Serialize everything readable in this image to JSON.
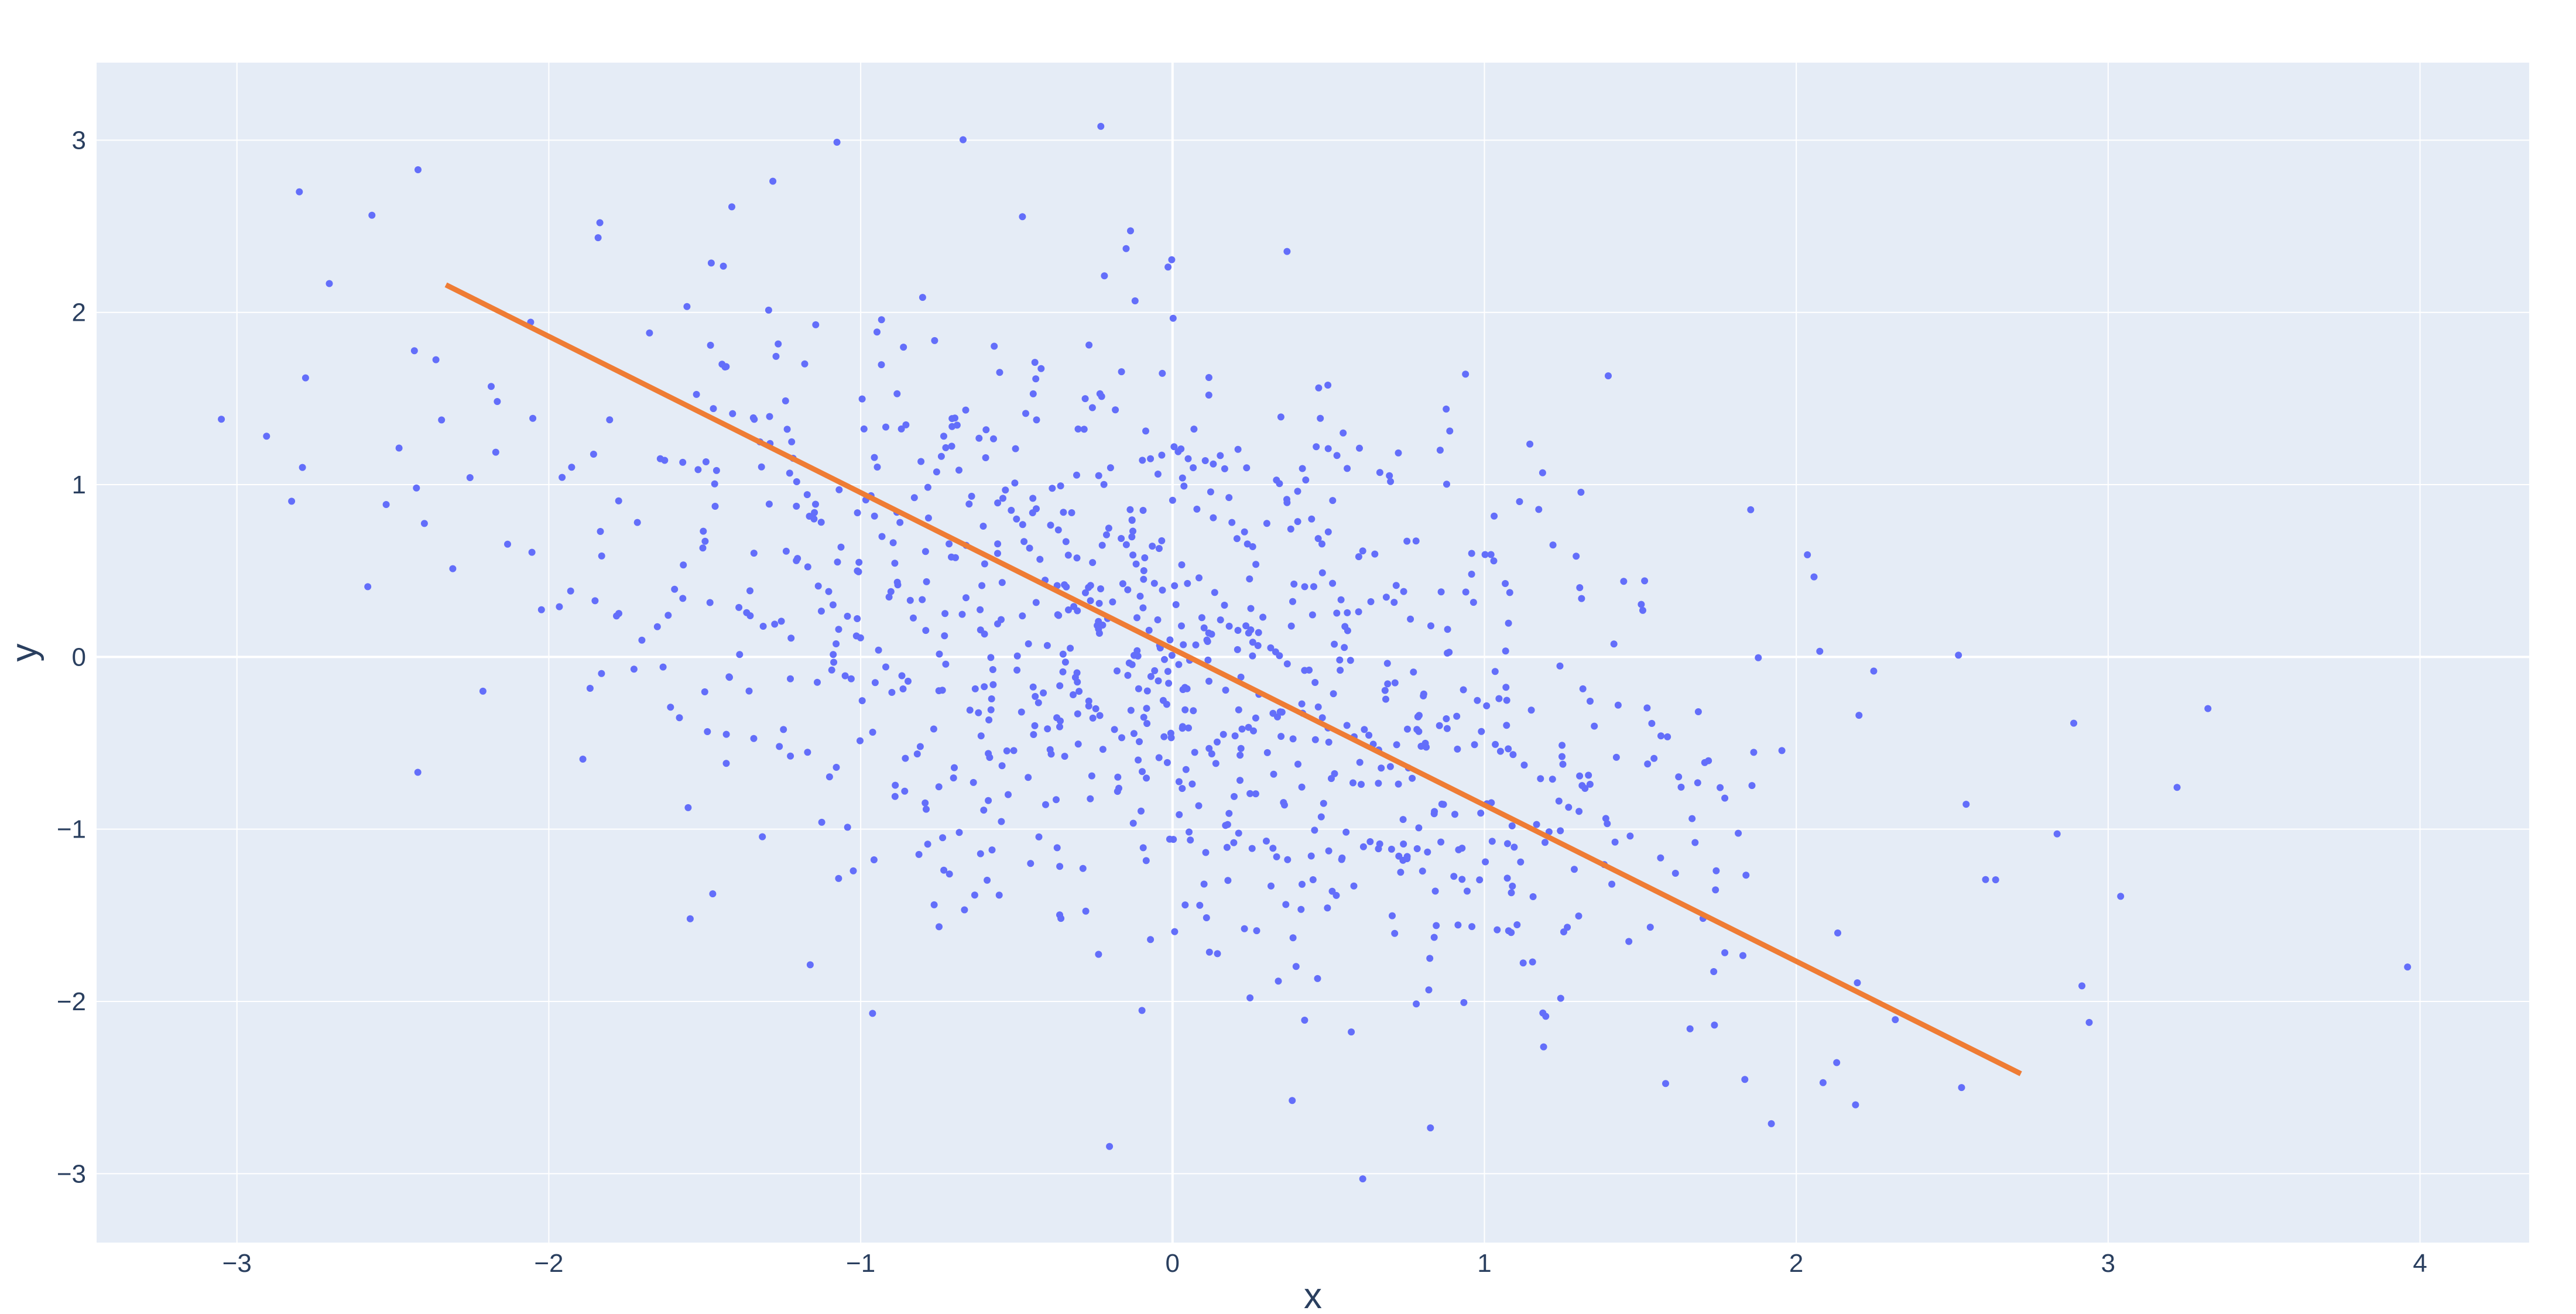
{
  "chart_data": {
    "type": "scatter",
    "title": "",
    "xlabel": "x",
    "ylabel": "y",
    "xlim": [
      -3.45,
      4.35
    ],
    "ylim": [
      -3.4,
      3.45
    ],
    "x_ticks": [
      -3,
      -2,
      -1,
      0,
      1,
      2,
      3,
      4
    ],
    "x_tick_labels": [
      "−3",
      "−2",
      "−1",
      "0",
      "1",
      "2",
      "3",
      "4"
    ],
    "y_ticks": [
      -3,
      -2,
      -1,
      0,
      1,
      2,
      3
    ],
    "y_tick_labels": [
      "−3",
      "−2",
      "−1",
      "0",
      "1",
      "2",
      "3"
    ],
    "grid": true,
    "legend": "none",
    "colors": {
      "plot_background": "#e5ecf6",
      "grid": "#ffffff",
      "points": "#636efa",
      "line": "#ef7c34",
      "text": "#2a3f5f"
    },
    "series": [
      {
        "type": "scatter",
        "approximate_count": 1000,
        "distribution": "bivariate normal, mean (0, 0), unit standard deviations, correlation about -0.45",
        "notable_points": [
          {
            "x": -3.05,
            "y": 1.38
          },
          {
            "x": -2.8,
            "y": 2.7
          },
          {
            "x": -2.78,
            "y": 1.62
          },
          {
            "x": -2.79,
            "y": 1.1
          },
          {
            "x": -2.42,
            "y": -0.67
          },
          {
            "x": -0.23,
            "y": 3.08
          },
          {
            "x": 3.04,
            "y": -1.39
          },
          {
            "x": 3.32,
            "y": -0.3
          },
          {
            "x": 3.96,
            "y": -1.8
          },
          {
            "x": 2.52,
            "y": 0.01
          },
          {
            "x": 2.53,
            "y": -2.5
          },
          {
            "x": 2.19,
            "y": -2.6
          },
          {
            "x": 0.61,
            "y": -3.03
          },
          {
            "x": 1.92,
            "y": -2.71
          }
        ]
      },
      {
        "type": "line",
        "x": [
          -2.33,
          2.72
        ],
        "y": [
          2.16,
          -2.42
        ]
      }
    ]
  }
}
